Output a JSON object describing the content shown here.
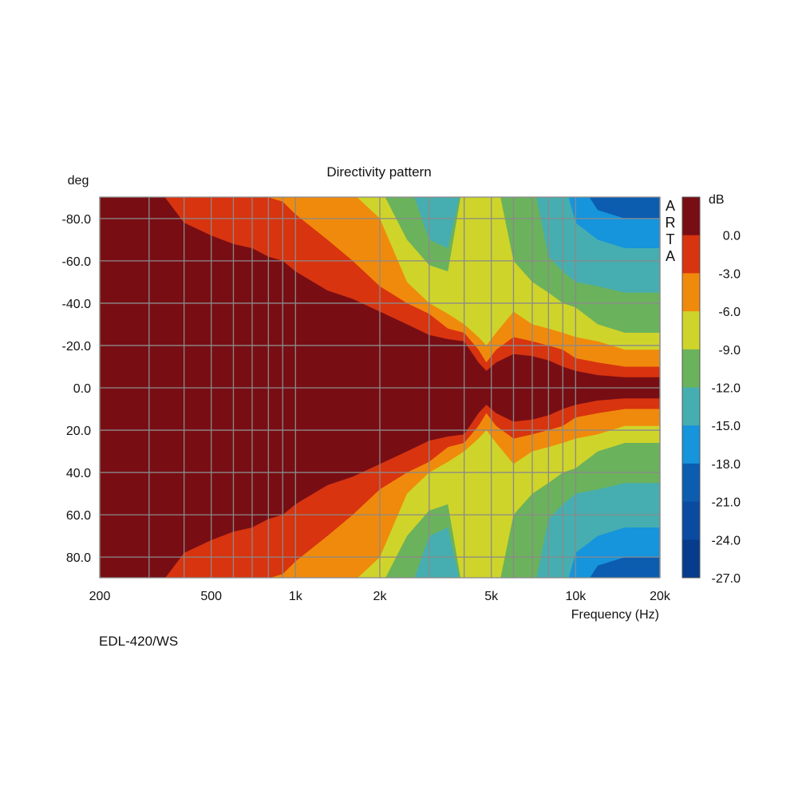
{
  "chart_data": {
    "type": "heatmap",
    "title": "Directivity pattern",
    "xlabel": "Frequency (Hz)",
    "ylabel": "deg",
    "x_scale": "log",
    "xlim": [
      200,
      20000
    ],
    "ylim": [
      -100,
      90
    ],
    "x_ticks": [
      {
        "value": 200,
        "label": "200"
      },
      {
        "value": 500,
        "label": "500"
      },
      {
        "value": 1000,
        "label": "1k"
      },
      {
        "value": 2000,
        "label": "2k"
      },
      {
        "value": 5000,
        "label": "5k"
      },
      {
        "value": 10000,
        "label": "10k"
      },
      {
        "value": 20000,
        "label": "20k"
      }
    ],
    "x_gridlines": [
      300,
      400,
      600,
      700,
      800,
      900,
      3000,
      4000,
      6000,
      7000,
      8000,
      9000
    ],
    "y_ticks": [
      {
        "value": -80,
        "label": "-80.0"
      },
      {
        "value": -60,
        "label": "-60.0"
      },
      {
        "value": -40,
        "label": "-40.0"
      },
      {
        "value": -20,
        "label": "-20.0"
      },
      {
        "value": 0,
        "label": "0.0"
      },
      {
        "value": 20,
        "label": "20.0"
      },
      {
        "value": 40,
        "label": "40.0"
      },
      {
        "value": 60,
        "label": "60.0"
      },
      {
        "value": 80,
        "label": "80.0"
      }
    ],
    "grid": true,
    "colorbar": {
      "title": "dB",
      "levels": [
        "0.0",
        "-3.0",
        "-6.0",
        "-9.0",
        "-12.0",
        "-15.0",
        "-18.0",
        "-21.0",
        "-24.0",
        "-27.0"
      ],
      "colors": [
        "#780e14",
        "#d8340f",
        "#f08a0c",
        "#cfd42a",
        "#6bb25c",
        "#46aeb0",
        "#1694dc",
        "#0c5cb0",
        "#0a4aa0",
        "#073c8c"
      ]
    },
    "brand": [
      "A",
      "R",
      "T",
      "A"
    ],
    "contours_deg_by_freq": {
      "freq_hz": [
        200,
        300,
        400,
        500,
        600,
        700,
        800,
        900,
        1000,
        1300,
        1600,
        2000,
        2500,
        3000,
        3500,
        4000,
        4500,
        4800,
        5200,
        6000,
        7000,
        8000,
        9000,
        10000,
        12000,
        15000,
        20000
      ],
      "minus_3dB": [
        100,
        100,
        78,
        72,
        68,
        66,
        62,
        60,
        55,
        46,
        42,
        36,
        30,
        25,
        23,
        22,
        12,
        8,
        12,
        16,
        15,
        13,
        10,
        8,
        6,
        5,
        5
      ],
      "minus_6dB": [
        100,
        100,
        100,
        100,
        100,
        100,
        90,
        88,
        82,
        70,
        60,
        48,
        40,
        35,
        28,
        26,
        18,
        12,
        18,
        24,
        22,
        20,
        18,
        14,
        12,
        10,
        10
      ],
      "minus_9dB": [
        100,
        100,
        100,
        100,
        100,
        100,
        100,
        100,
        100,
        95,
        92,
        80,
        50,
        40,
        35,
        30,
        24,
        20,
        26,
        36,
        30,
        28,
        26,
        24,
        22,
        18,
        18
      ],
      "minus_12dB": [
        100,
        100,
        100,
        100,
        100,
        100,
        100,
        100,
        100,
        100,
        100,
        95,
        70,
        58,
        55,
        100,
        100,
        100,
        100,
        60,
        50,
        45,
        40,
        38,
        30,
        26,
        26
      ],
      "minus_15dB": [
        100,
        100,
        100,
        100,
        100,
        100,
        100,
        100,
        100,
        100,
        100,
        100,
        100,
        70,
        66,
        100,
        100,
        100,
        100,
        100,
        100,
        62,
        55,
        50,
        48,
        45,
        45
      ],
      "minus_18dB": [
        100,
        100,
        100,
        100,
        100,
        100,
        100,
        100,
        100,
        100,
        100,
        100,
        100,
        100,
        100,
        100,
        100,
        100,
        100,
        100,
        100,
        100,
        100,
        78,
        70,
        66,
        66
      ],
      "minus_21dB": [
        100,
        100,
        100,
        100,
        100,
        100,
        100,
        100,
        100,
        100,
        100,
        100,
        100,
        100,
        100,
        100,
        100,
        100,
        100,
        100,
        100,
        100,
        100,
        100,
        84,
        80,
        80
      ]
    }
  },
  "footer": {
    "model": "EDL-420/WS"
  }
}
